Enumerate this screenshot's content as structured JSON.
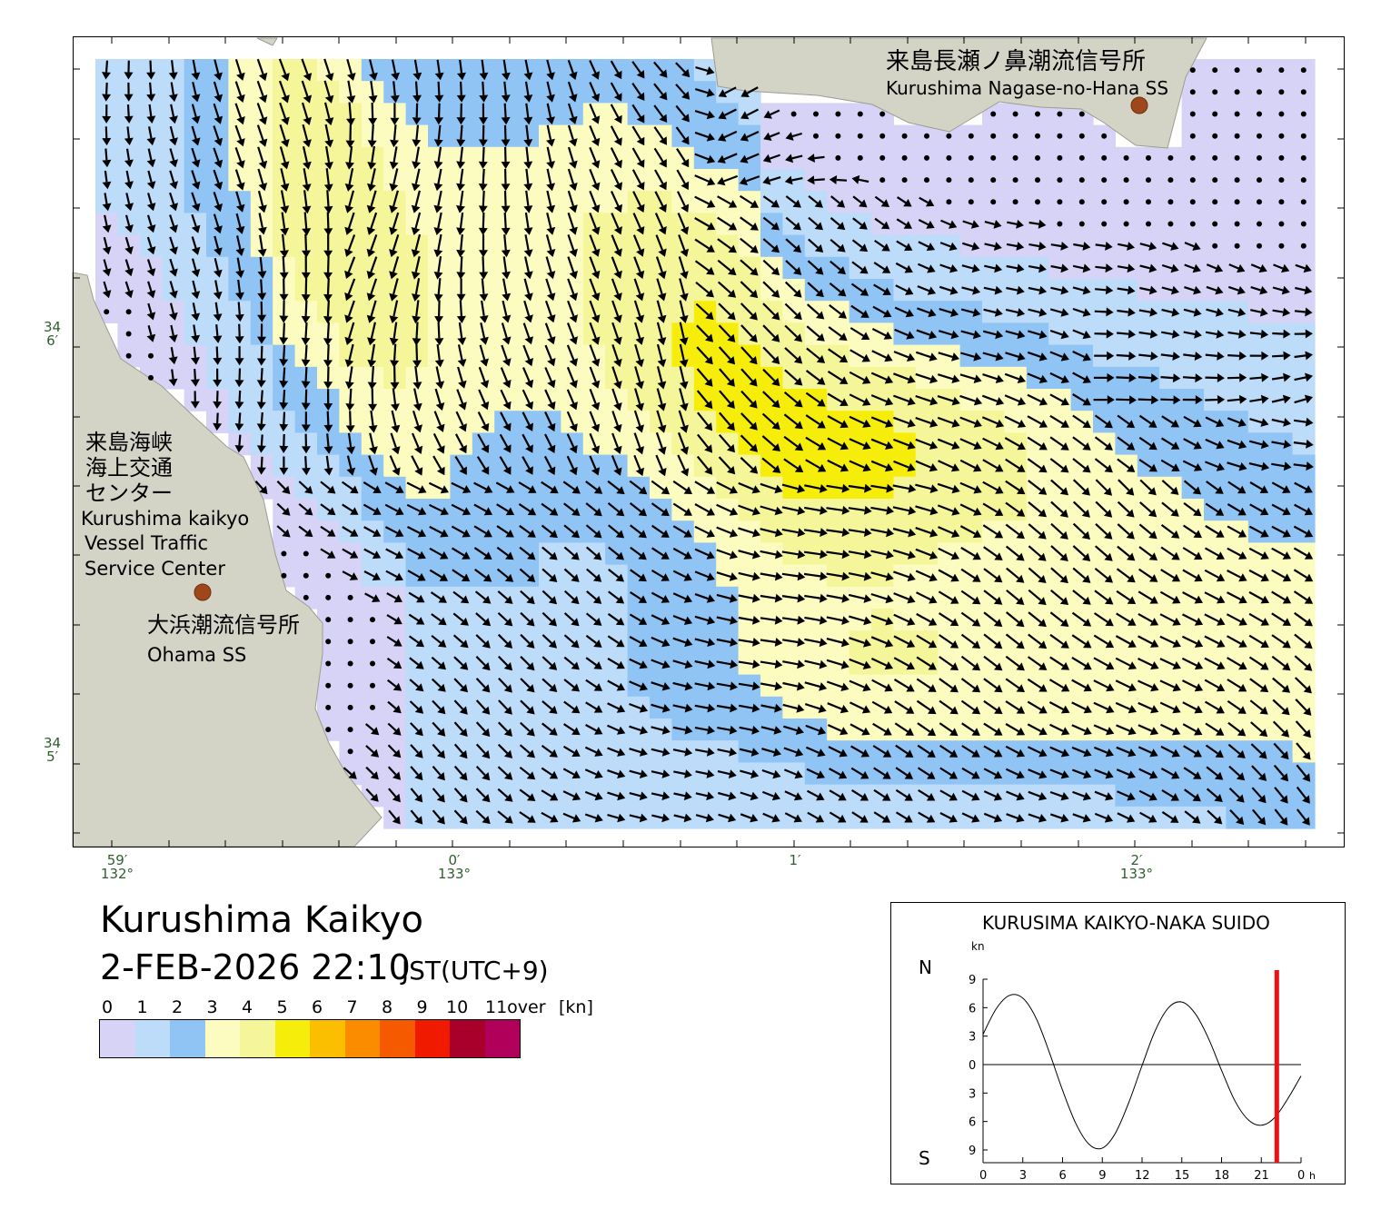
{
  "header": {
    "title": "Kurushima Kaikyo",
    "datetime": "2-FEB-2026 22:10",
    "timezone": "JST(UTC+9)"
  },
  "stations": {
    "vts_jp_1": "来島海峡",
    "vts_jp_2": "海上交通",
    "vts_jp_3": "センター",
    "vts_en_1": "Kurushima kaikyo",
    "vts_en_2": "Vessel Traffic",
    "vts_en_3": "Service Center",
    "ohama_jp": "大浜潮流信号所",
    "ohama_en": "Ohama SS",
    "nagase_jp": "来島長瀬ノ鼻潮流信号所",
    "nagase_en": "Kurushima Nagase-no-Hana SS"
  },
  "axes": {
    "lat_labels": [
      {
        "deg": "34",
        "min": "6′"
      },
      {
        "deg": "34",
        "min": "5′"
      }
    ],
    "lon_labels": [
      {
        "min": "59′",
        "deg": "132°"
      },
      {
        "min": "0′",
        "deg": "133°"
      },
      {
        "min": "1′",
        "deg": ""
      },
      {
        "min": "2′",
        "deg": "133°"
      }
    ]
  },
  "legend": {
    "labels": [
      "0",
      "1",
      "2",
      "3",
      "4",
      "5",
      "6",
      "7",
      "8",
      "9",
      "10",
      "11over",
      "[kn]"
    ],
    "colors": [
      "#d6d3f7",
      "#bcdcf9",
      "#90c4f5",
      "#fdfcc0",
      "#f5f59a",
      "#f6ee0a",
      "#fbbf00",
      "#fb8c00",
      "#f55a00",
      "#f01a00",
      "#a8002a",
      "#b0005a"
    ]
  },
  "tide_chart": {
    "title": "KURUSIMA KAIKYO-NAKA SUIDO",
    "unit": "kn",
    "north_label": "N",
    "south_label": "S",
    "y_ticks": [
      "9",
      "6",
      "3",
      "0",
      "3",
      "6",
      "9"
    ],
    "x_ticks": [
      "0",
      "3",
      "6",
      "9",
      "12",
      "15",
      "18",
      "21",
      "0"
    ],
    "x_unit": "h",
    "current_hour": 22.17,
    "current_line_color": "#ee1111",
    "curve": {
      "hours": [
        0,
        1,
        2,
        3,
        4,
        5,
        6,
        7,
        8,
        9,
        10,
        11,
        12,
        13,
        14,
        15,
        16,
        17,
        18,
        19,
        20,
        21,
        22,
        23,
        24
      ],
      "knots": [
        3.2,
        5.9,
        7.3,
        7.0,
        4.9,
        1.3,
        -2.7,
        -6.2,
        -8.4,
        -8.8,
        -7.2,
        -4.0,
        -0.1,
        3.6,
        6.0,
        6.6,
        5.4,
        2.8,
        -0.6,
        -3.8,
        -5.8,
        -6.4,
        -5.6,
        -3.6,
        -1.2
      ]
    }
  }
}
